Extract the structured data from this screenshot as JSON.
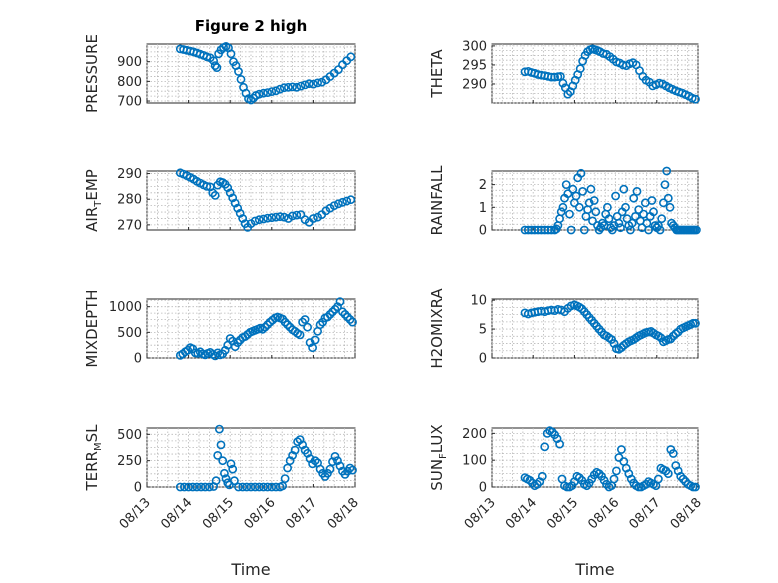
{
  "figure_title": "Figure 2 high",
  "marker_color": "#0072BD",
  "chart_data": [
    {
      "type": "scatter",
      "title": "Figure 2 high",
      "ylabel": "PRESSURE",
      "ylabel_parts": [
        "PRESSURE"
      ],
      "xlabel": "",
      "xlim": [
        13,
        18
      ],
      "ylim": [
        690,
        990
      ],
      "yticks": [
        700,
        800,
        900
      ],
      "grid": true,
      "x": [
        13.8,
        13.88,
        13.96,
        14.04,
        14.12,
        14.2,
        14.28,
        14.36,
        14.44,
        14.52,
        14.6,
        14.64,
        14.68,
        14.72,
        14.78,
        14.84,
        14.9,
        14.96,
        15.02,
        15.08,
        15.14,
        15.2,
        15.26,
        15.32,
        15.38,
        15.44,
        15.5,
        15.56,
        15.62,
        15.7,
        15.8,
        15.9,
        16.0,
        16.1,
        16.2,
        16.3,
        16.4,
        16.5,
        16.6,
        16.7,
        16.8,
        16.9,
        17.0,
        17.1,
        17.2,
        17.3,
        17.4,
        17.5,
        17.6,
        17.7,
        17.8,
        17.9
      ],
      "y": [
        965,
        962,
        958,
        954,
        950,
        944,
        938,
        932,
        925,
        920,
        905,
        880,
        870,
        940,
        960,
        972,
        978,
        970,
        940,
        900,
        880,
        850,
        810,
        770,
        740,
        712,
        705,
        715,
        728,
        735,
        740,
        743,
        748,
        752,
        760,
        768,
        770,
        772,
        770,
        776,
        782,
        788,
        786,
        792,
        796,
        808,
        825,
        842,
        860,
        885,
        905,
        925
      ]
    },
    {
      "type": "scatter",
      "title": "",
      "ylabel": "THETA",
      "ylabel_parts": [
        "THETA"
      ],
      "xlabel": "",
      "xlim": [
        13,
        18
      ],
      "ylim": [
        285,
        300.5
      ],
      "yticks": [
        290,
        295,
        300
      ],
      "grid": true,
      "x": [
        13.8,
        13.88,
        13.96,
        14.04,
        14.12,
        14.2,
        14.28,
        14.36,
        14.44,
        14.52,
        14.6,
        14.66,
        14.72,
        14.78,
        14.84,
        14.9,
        14.96,
        15.02,
        15.08,
        15.14,
        15.2,
        15.26,
        15.32,
        15.38,
        15.44,
        15.5,
        15.56,
        15.62,
        15.7,
        15.78,
        15.86,
        15.94,
        16.02,
        16.1,
        16.18,
        16.26,
        16.34,
        16.42,
        16.5,
        16.58,
        16.66,
        16.74,
        16.82,
        16.9,
        16.98,
        17.06,
        17.14,
        17.22,
        17.3,
        17.38,
        17.46,
        17.54,
        17.62,
        17.7,
        17.78,
        17.86,
        17.94
      ],
      "y": [
        293.2,
        293.3,
        293.0,
        292.8,
        292.5,
        292.3,
        292.2,
        292.0,
        291.8,
        291.8,
        291.9,
        292.0,
        290.2,
        289.0,
        287.3,
        288.0,
        289.5,
        291.0,
        292.5,
        294.0,
        296.0,
        297.5,
        298.5,
        299.0,
        299.2,
        299.0,
        298.8,
        298.5,
        298.0,
        297.8,
        297.2,
        296.5,
        295.8,
        295.5,
        295.0,
        294.8,
        295.3,
        295.6,
        295.0,
        293.5,
        292.0,
        291.0,
        290.5,
        289.5,
        289.8,
        290.2,
        290.0,
        289.5,
        289.0,
        288.6,
        288.2,
        287.9,
        287.6,
        287.2,
        286.8,
        286.3,
        286.0
      ]
    },
    {
      "type": "scatter",
      "title": "",
      "ylabel": "AIR_TEMP",
      "ylabel_parts": [
        "AIR",
        "T",
        "EMP"
      ],
      "xlabel": "",
      "xlim": [
        13,
        18
      ],
      "ylim": [
        268,
        291
      ],
      "yticks": [
        270,
        280,
        290
      ],
      "grid": true,
      "x": [
        13.8,
        13.88,
        13.96,
        14.04,
        14.12,
        14.2,
        14.28,
        14.36,
        14.44,
        14.52,
        14.58,
        14.64,
        14.7,
        14.76,
        14.82,
        14.88,
        14.94,
        15.0,
        15.06,
        15.12,
        15.18,
        15.24,
        15.3,
        15.36,
        15.42,
        15.5,
        15.6,
        15.7,
        15.8,
        15.9,
        16.0,
        16.1,
        16.2,
        16.3,
        16.4,
        16.5,
        16.6,
        16.7,
        16.8,
        16.9,
        17.0,
        17.1,
        17.2,
        17.3,
        17.4,
        17.5,
        17.6,
        17.7,
        17.8,
        17.9
      ],
      "y": [
        290.3,
        289.8,
        289.2,
        288.5,
        287.8,
        287.0,
        286.3,
        285.6,
        285.0,
        284.8,
        282.5,
        281.5,
        285.5,
        286.8,
        286.5,
        285.8,
        284.5,
        282.5,
        280.5,
        278.5,
        276.5,
        274.5,
        272.5,
        270.5,
        269.0,
        270.5,
        271.5,
        272.0,
        272.3,
        272.6,
        272.8,
        273.0,
        273.2,
        273.0,
        272.5,
        273.5,
        273.8,
        274.0,
        272.0,
        271.0,
        272.5,
        273.0,
        274.0,
        275.5,
        276.5,
        277.5,
        278.2,
        278.8,
        279.3,
        279.8
      ]
    },
    {
      "type": "scatter",
      "title": "",
      "ylabel": "RAINFALL",
      "ylabel_parts": [
        "RAINFALL"
      ],
      "xlabel": "",
      "xlim": [
        13,
        18
      ],
      "ylim": [
        0,
        2.6
      ],
      "yticks": [
        0,
        1,
        2
      ],
      "grid": true,
      "x": [
        13.8,
        13.88,
        13.96,
        14.04,
        14.12,
        14.2,
        14.28,
        14.36,
        14.44,
        14.52,
        14.56,
        14.6,
        14.64,
        14.68,
        14.72,
        14.76,
        14.8,
        14.84,
        14.88,
        14.92,
        14.96,
        15.0,
        15.04,
        15.08,
        15.12,
        15.16,
        15.2,
        15.24,
        15.28,
        15.32,
        15.36,
        15.4,
        15.44,
        15.48,
        15.52,
        15.56,
        15.6,
        15.64,
        15.68,
        15.72,
        15.76,
        15.8,
        15.84,
        15.88,
        15.92,
        15.96,
        16.0,
        16.04,
        16.08,
        16.12,
        16.16,
        16.2,
        16.24,
        16.28,
        16.32,
        16.36,
        16.4,
        16.44,
        16.48,
        16.52,
        16.56,
        16.6,
        16.64,
        16.68,
        16.72,
        16.76,
        16.8,
        16.84,
        16.88,
        16.92,
        16.96,
        17.0,
        17.04,
        17.08,
        17.12,
        17.16,
        17.2,
        17.24,
        17.28,
        17.32,
        17.36,
        17.4,
        17.44,
        17.48,
        17.52,
        17.56,
        17.6,
        17.64,
        17.68,
        17.72,
        17.76,
        17.8,
        17.84,
        17.88,
        17.92,
        17.96
      ],
      "y": [
        0,
        0,
        0,
        0,
        0,
        0,
        0,
        0,
        0,
        0,
        0.05,
        0.2,
        0.5,
        0.8,
        1.0,
        1.4,
        2.0,
        1.6,
        0.7,
        0,
        1.8,
        1.2,
        1.5,
        2.3,
        1.0,
        2.5,
        1.7,
        0,
        0.6,
        0.9,
        1.2,
        1.8,
        0.4,
        1.3,
        0.8,
        0.2,
        0,
        0.1,
        0.3,
        0.2,
        0.7,
        1.0,
        0.5,
        0.1,
        0,
        0.2,
        1.5,
        0.6,
        0.3,
        0.1,
        0.8,
        1.8,
        1.0,
        0.5,
        0.2,
        0,
        0.3,
        1.4,
        0.6,
        1.7,
        0.9,
        0.4,
        0.1,
        0.7,
        1.2,
        0.3,
        0,
        0.6,
        1.3,
        0.8,
        0.2,
        0.1,
        0.2,
        0,
        0.5,
        1.2,
        2.0,
        2.6,
        1.4,
        1.0,
        0.3,
        0.2,
        0.1,
        0,
        0,
        0,
        0,
        0,
        0,
        0,
        0,
        0,
        0,
        0,
        0,
        0
      ]
    },
    {
      "type": "scatter",
      "title": "",
      "ylabel": "MIXDEPTH",
      "ylabel_parts": [
        "MIXDEPTH"
      ],
      "xlabel": "",
      "xlim": [
        13,
        18
      ],
      "ylim": [
        0,
        1150
      ],
      "yticks": [
        0,
        500,
        1000
      ],
      "grid": true,
      "x": [
        13.8,
        13.86,
        13.92,
        13.98,
        14.04,
        14.1,
        14.16,
        14.22,
        14.28,
        14.34,
        14.4,
        14.46,
        14.52,
        14.58,
        14.64,
        14.7,
        14.76,
        14.82,
        14.88,
        14.94,
        15.0,
        15.06,
        15.12,
        15.18,
        15.24,
        15.3,
        15.36,
        15.42,
        15.48,
        15.54,
        15.6,
        15.66,
        15.72,
        15.78,
        15.84,
        15.9,
        15.96,
        16.02,
        16.08,
        16.14,
        16.2,
        16.26,
        16.32,
        16.38,
        16.44,
        16.5,
        16.56,
        16.62,
        16.68,
        16.74,
        16.8,
        16.86,
        16.92,
        16.98,
        17.04,
        17.1,
        17.16,
        17.22,
        17.28,
        17.34,
        17.4,
        17.46,
        17.52,
        17.58,
        17.64,
        17.7,
        17.76,
        17.82,
        17.88,
        17.94
      ],
      "y": [
        50,
        80,
        120,
        150,
        200,
        180,
        100,
        90,
        120,
        80,
        60,
        90,
        110,
        70,
        40,
        100,
        60,
        80,
        150,
        250,
        380,
        330,
        220,
        300,
        350,
        400,
        420,
        460,
        500,
        520,
        540,
        560,
        580,
        560,
        600,
        650,
        700,
        740,
        780,
        800,
        780,
        760,
        700,
        650,
        600,
        550,
        520,
        480,
        450,
        700,
        750,
        600,
        300,
        200,
        350,
        520,
        650,
        700,
        780,
        800,
        850,
        900,
        950,
        1000,
        1100,
        900,
        850,
        800,
        750,
        700
      ]
    },
    {
      "type": "scatter",
      "title": "",
      "ylabel": "H2OMIXRA",
      "ylabel_parts": [
        "H2OMIXRA"
      ],
      "xlabel": "",
      "xlim": [
        13,
        18
      ],
      "ylim": [
        0,
        10.2
      ],
      "yticks": [
        0,
        5,
        10
      ],
      "grid": true,
      "x": [
        13.8,
        13.88,
        13.96,
        14.04,
        14.12,
        14.2,
        14.28,
        14.36,
        14.44,
        14.52,
        14.6,
        14.68,
        14.76,
        14.84,
        14.92,
        15.0,
        15.06,
        15.12,
        15.18,
        15.24,
        15.3,
        15.36,
        15.42,
        15.48,
        15.54,
        15.6,
        15.66,
        15.72,
        15.78,
        15.84,
        15.9,
        15.96,
        16.02,
        16.08,
        16.14,
        16.2,
        16.26,
        16.32,
        16.38,
        16.44,
        16.5,
        16.56,
        16.62,
        16.68,
        16.74,
        16.8,
        16.86,
        16.92,
        16.98,
        17.04,
        17.1,
        17.16,
        17.22,
        17.28,
        17.34,
        17.4,
        17.46,
        17.52,
        17.58,
        17.64,
        17.7,
        17.76,
        17.82,
        17.88,
        17.94
      ],
      "y": [
        7.8,
        7.6,
        7.8,
        7.9,
        8.0,
        8.1,
        8.0,
        8.2,
        8.3,
        8.2,
        8.4,
        8.3,
        8.0,
        8.6,
        9.0,
        9.2,
        9.0,
        8.8,
        8.5,
        8.0,
        7.5,
        7.0,
        6.5,
        6.0,
        5.5,
        5.0,
        4.5,
        4.0,
        3.8,
        3.5,
        3.2,
        2.5,
        1.6,
        1.5,
        1.8,
        2.2,
        2.5,
        2.8,
        3.0,
        3.2,
        3.5,
        3.8,
        4.0,
        4.2,
        4.4,
        4.5,
        4.6,
        4.3,
        4.0,
        3.8,
        3.5,
        2.8,
        3.0,
        3.2,
        3.3,
        3.8,
        4.2,
        4.5,
        5.0,
        5.2,
        5.4,
        5.6,
        5.8,
        6.0,
        6.0
      ]
    },
    {
      "type": "scatter",
      "title": "",
      "ylabel": "TERR_MSL",
      "ylabel_parts": [
        "TERR",
        "M",
        "SL"
      ],
      "xlabel": "Time",
      "xlim": [
        13,
        18
      ],
      "ylim": [
        0,
        560
      ],
      "yticks": [
        0,
        250,
        500
      ],
      "grid": true,
      "x": [
        13.8,
        13.9,
        14.0,
        14.1,
        14.2,
        14.3,
        14.4,
        14.5,
        14.6,
        14.66,
        14.7,
        14.74,
        14.78,
        14.82,
        14.86,
        14.9,
        14.94,
        14.98,
        15.02,
        15.06,
        15.1,
        15.2,
        15.3,
        15.4,
        15.5,
        15.6,
        15.7,
        15.8,
        15.9,
        16.0,
        16.1,
        16.2,
        16.26,
        16.32,
        16.38,
        16.44,
        16.5,
        16.56,
        16.62,
        16.68,
        16.74,
        16.8,
        16.86,
        16.92,
        16.98,
        17.04,
        17.1,
        17.16,
        17.22,
        17.28,
        17.34,
        17.4,
        17.46,
        17.52,
        17.58,
        17.64,
        17.7,
        17.76,
        17.82,
        17.88,
        17.94
      ],
      "y": [
        0,
        0,
        0,
        0,
        0,
        0,
        0,
        0,
        5,
        60,
        300,
        550,
        400,
        250,
        130,
        80,
        40,
        20,
        220,
        170,
        60,
        0,
        0,
        0,
        0,
        0,
        0,
        0,
        0,
        0,
        0,
        0,
        10,
        80,
        180,
        250,
        300,
        350,
        430,
        450,
        400,
        350,
        320,
        270,
        220,
        250,
        230,
        170,
        130,
        100,
        130,
        170,
        240,
        290,
        250,
        200,
        150,
        120,
        150,
        180,
        160
      ]
    },
    {
      "type": "scatter",
      "title": "",
      "ylabel": "SUN_FLUX",
      "ylabel_parts": [
        "SUN",
        "F",
        "LUX"
      ],
      "xlabel": "Time",
      "xlim": [
        13,
        18
      ],
      "ylim": [
        0,
        220
      ],
      "yticks": [
        0,
        100,
        200
      ],
      "grid": true,
      "x": [
        13.8,
        13.86,
        13.92,
        13.98,
        14.04,
        14.1,
        14.16,
        14.22,
        14.28,
        14.34,
        14.4,
        14.46,
        14.52,
        14.58,
        14.64,
        14.7,
        14.76,
        14.82,
        14.88,
        14.94,
        15.0,
        15.06,
        15.12,
        15.18,
        15.24,
        15.3,
        15.36,
        15.42,
        15.48,
        15.54,
        15.6,
        15.66,
        15.72,
        15.78,
        15.84,
        15.9,
        15.96,
        16.02,
        16.08,
        16.14,
        16.2,
        16.26,
        16.32,
        16.38,
        16.44,
        16.5,
        16.56,
        16.62,
        16.68,
        16.74,
        16.8,
        16.86,
        16.92,
        16.98,
        17.04,
        17.1,
        17.16,
        17.22,
        17.28,
        17.34,
        17.4,
        17.46,
        17.52,
        17.58,
        17.64,
        17.7,
        17.76,
        17.82,
        17.88,
        17.94
      ],
      "y": [
        35,
        30,
        25,
        15,
        5,
        10,
        20,
        40,
        150,
        200,
        210,
        205,
        195,
        180,
        160,
        30,
        5,
        0,
        0,
        5,
        20,
        40,
        35,
        25,
        10,
        5,
        15,
        30,
        45,
        55,
        50,
        40,
        25,
        10,
        0,
        5,
        30,
        60,
        110,
        140,
        95,
        70,
        50,
        30,
        15,
        5,
        0,
        0,
        5,
        10,
        20,
        15,
        10,
        5,
        30,
        70,
        65,
        60,
        50,
        140,
        125,
        80,
        60,
        40,
        30,
        20,
        10,
        5,
        0,
        0
      ]
    }
  ],
  "x_tick_labels": [
    "08/13",
    "08/14",
    "08/15",
    "08/16",
    "08/17",
    "08/18"
  ]
}
